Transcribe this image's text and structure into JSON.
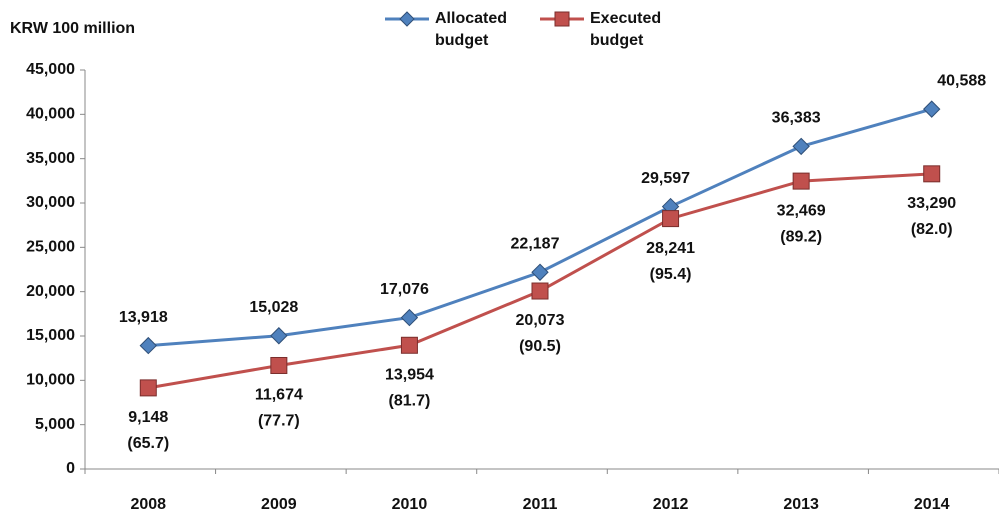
{
  "chart_data": {
    "type": "line",
    "y_axis_label": "KRW 100 million",
    "categories": [
      "2008",
      "2009",
      "2010",
      "2011",
      "2012",
      "2013",
      "2014"
    ],
    "series": [
      {
        "name": "Allocated budget",
        "color": "#4f81bd",
        "marker": "diamond",
        "values": [
          13918,
          15028,
          17076,
          22187,
          29597,
          36383,
          40588
        ],
        "value_labels": [
          "13,918",
          "15,028",
          "17,076",
          "22,187",
          "29,597",
          "36,383",
          "40,588"
        ]
      },
      {
        "name": "Executed budget",
        "color": "#c0504d",
        "marker": "square",
        "values": [
          9148,
          11674,
          13954,
          20073,
          28241,
          32469,
          33290
        ],
        "value_labels": [
          "9,148",
          "11,674",
          "13,954",
          "20,073",
          "28,241",
          "32,469",
          "33,290"
        ],
        "rates": [
          65.7,
          77.7,
          81.7,
          90.5,
          95.4,
          89.2,
          82.0
        ],
        "rate_labels": [
          "(65.7)",
          "(77.7)",
          "(81.7)",
          "(90.5)",
          "(95.4)",
          "(89.2)",
          "(82.0)"
        ]
      }
    ],
    "ylim": [
      0,
      45000
    ],
    "yticks": [
      0,
      {
        "value": 5000,
        "label": "5,000"
      },
      {
        "value": 10000,
        "label": "10,000"
      },
      {
        "value": 15000,
        "label": "15,000"
      },
      {
        "value": 20000,
        "label": "20,000"
      },
      {
        "value": 25000,
        "label": "25,000"
      },
      {
        "value": 30000,
        "label": "30,000"
      },
      {
        "value": 35000,
        "label": "35,000"
      },
      {
        "value": 40000,
        "label": "40,000"
      },
      {
        "value": 45000,
        "label": "45,000"
      }
    ],
    "grid": false
  }
}
